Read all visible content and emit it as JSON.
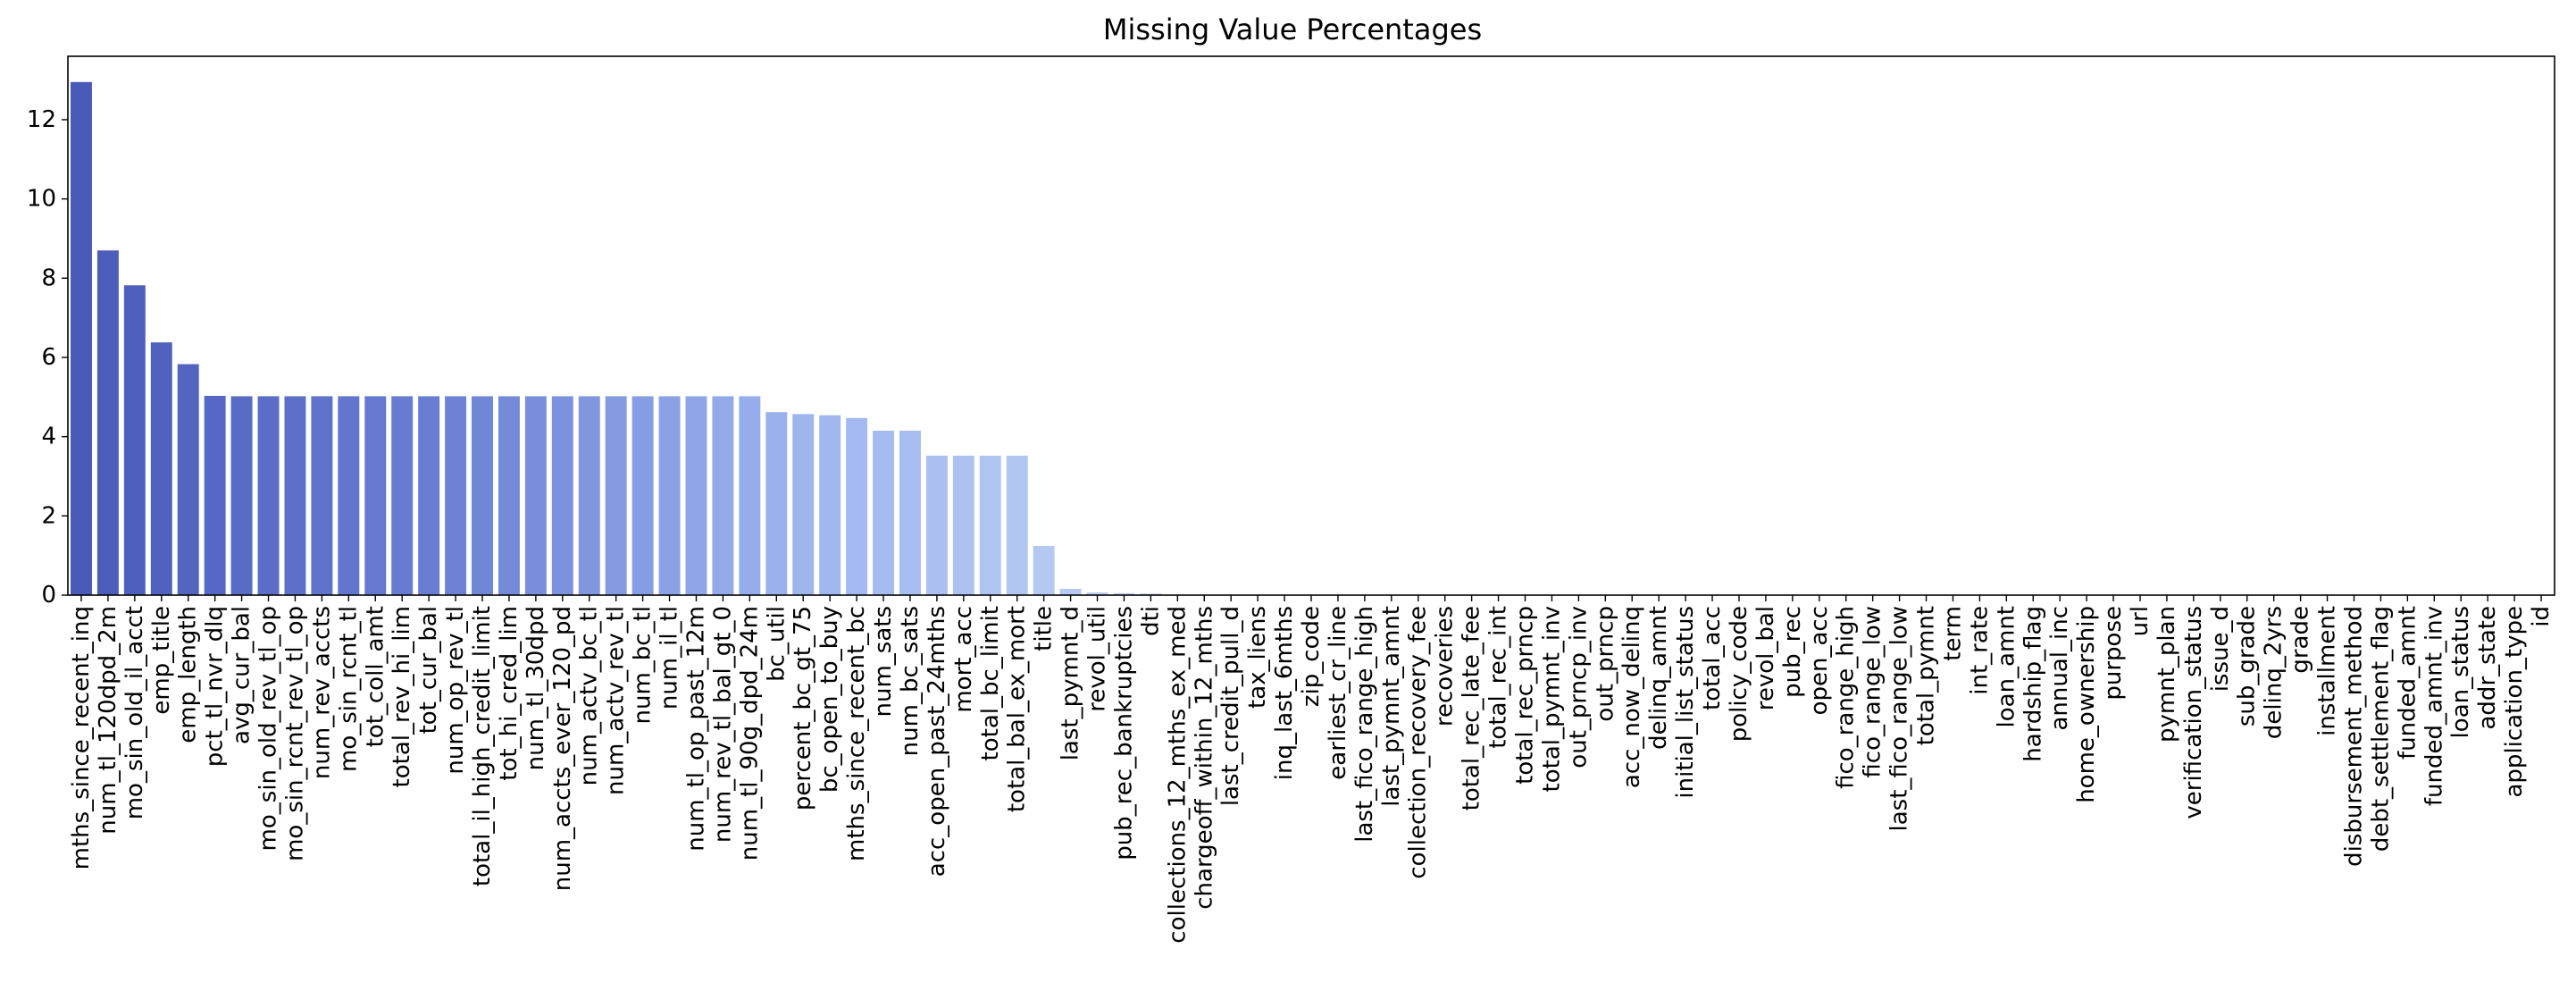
{
  "chart_data": {
    "type": "bar",
    "title": "Missing Value Percentages",
    "xlabel": "",
    "ylabel": "",
    "ylim": [
      0,
      13.6
    ],
    "yticks": [
      0,
      2,
      4,
      6,
      8,
      10,
      12
    ],
    "grid": false,
    "categories": [
      "mths_since_recent_inq",
      "num_tl_120dpd_2m",
      "mo_sin_old_il_acct",
      "emp_title",
      "emp_length",
      "pct_tl_nvr_dlq",
      "avg_cur_bal",
      "mo_sin_old_rev_tl_op",
      "mo_sin_rcnt_rev_tl_op",
      "num_rev_accts",
      "mo_sin_rcnt_tl",
      "tot_coll_amt",
      "total_rev_hi_lim",
      "tot_cur_bal",
      "num_op_rev_tl",
      "total_il_high_credit_limit",
      "tot_hi_cred_lim",
      "num_tl_30dpd",
      "num_accts_ever_120_pd",
      "num_actv_bc_tl",
      "num_actv_rev_tl",
      "num_bc_tl",
      "num_il_tl",
      "num_tl_op_past_12m",
      "num_rev_tl_bal_gt_0",
      "num_tl_90g_dpd_24m",
      "bc_util",
      "percent_bc_gt_75",
      "bc_open_to_buy",
      "mths_since_recent_bc",
      "num_sats",
      "num_bc_sats",
      "acc_open_past_24mths",
      "mort_acc",
      "total_bc_limit",
      "total_bal_ex_mort",
      "title",
      "last_pymnt_d",
      "revol_util",
      "pub_rec_bankruptcies",
      "dti",
      "collections_12_mths_ex_med",
      "chargeoff_within_12_mths",
      "last_credit_pull_d",
      "tax_liens",
      "inq_last_6mths",
      "zip_code",
      "earliest_cr_line",
      "last_fico_range_high",
      "last_pymnt_amnt",
      "collection_recovery_fee",
      "recoveries",
      "total_rec_late_fee",
      "total_rec_int",
      "total_rec_prncp",
      "total_pymnt_inv",
      "out_prncp_inv",
      "out_prncp",
      "acc_now_delinq",
      "delinq_amnt",
      "initial_list_status",
      "total_acc",
      "policy_code",
      "revol_bal",
      "pub_rec",
      "open_acc",
      "fico_range_high",
      "fico_range_low",
      "last_fico_range_low",
      "total_pymnt",
      "term",
      "int_rate",
      "loan_amnt",
      "hardship_flag",
      "annual_inc",
      "home_ownership",
      "purpose",
      "url",
      "pymnt_plan",
      "verification_status",
      "issue_d",
      "sub_grade",
      "delinq_2yrs",
      "grade",
      "installment",
      "disbursement_method",
      "debt_settlement_flag",
      "funded_amnt",
      "funded_amnt_inv",
      "loan_status",
      "addr_state",
      "application_type",
      "id"
    ],
    "values": [
      12.95,
      8.7,
      7.82,
      6.38,
      5.83,
      5.03,
      5.02,
      5.02,
      5.02,
      5.02,
      5.02,
      5.02,
      5.02,
      5.02,
      5.02,
      5.02,
      5.02,
      5.02,
      5.02,
      5.02,
      5.02,
      5.02,
      5.02,
      5.02,
      5.02,
      5.02,
      4.62,
      4.57,
      4.54,
      4.47,
      4.15,
      4.15,
      3.52,
      3.52,
      3.52,
      3.52,
      1.24,
      0.16,
      0.07,
      0.05,
      0.04,
      0.01,
      0.01,
      0.01,
      0.01,
      0.01,
      0,
      0,
      0,
      0,
      0,
      0,
      0,
      0,
      0,
      0,
      0,
      0,
      0,
      0,
      0,
      0,
      0,
      0,
      0,
      0,
      0,
      0,
      0,
      0,
      0,
      0,
      0,
      0,
      0,
      0,
      0,
      0,
      0,
      0,
      0,
      0,
      0,
      0,
      0,
      0,
      0,
      0,
      0,
      0,
      0,
      0,
      0
    ],
    "palette": [
      "#4a5ab8",
      "#6a7fd4",
      "#9db4ee",
      "#bfd1f4"
    ]
  }
}
